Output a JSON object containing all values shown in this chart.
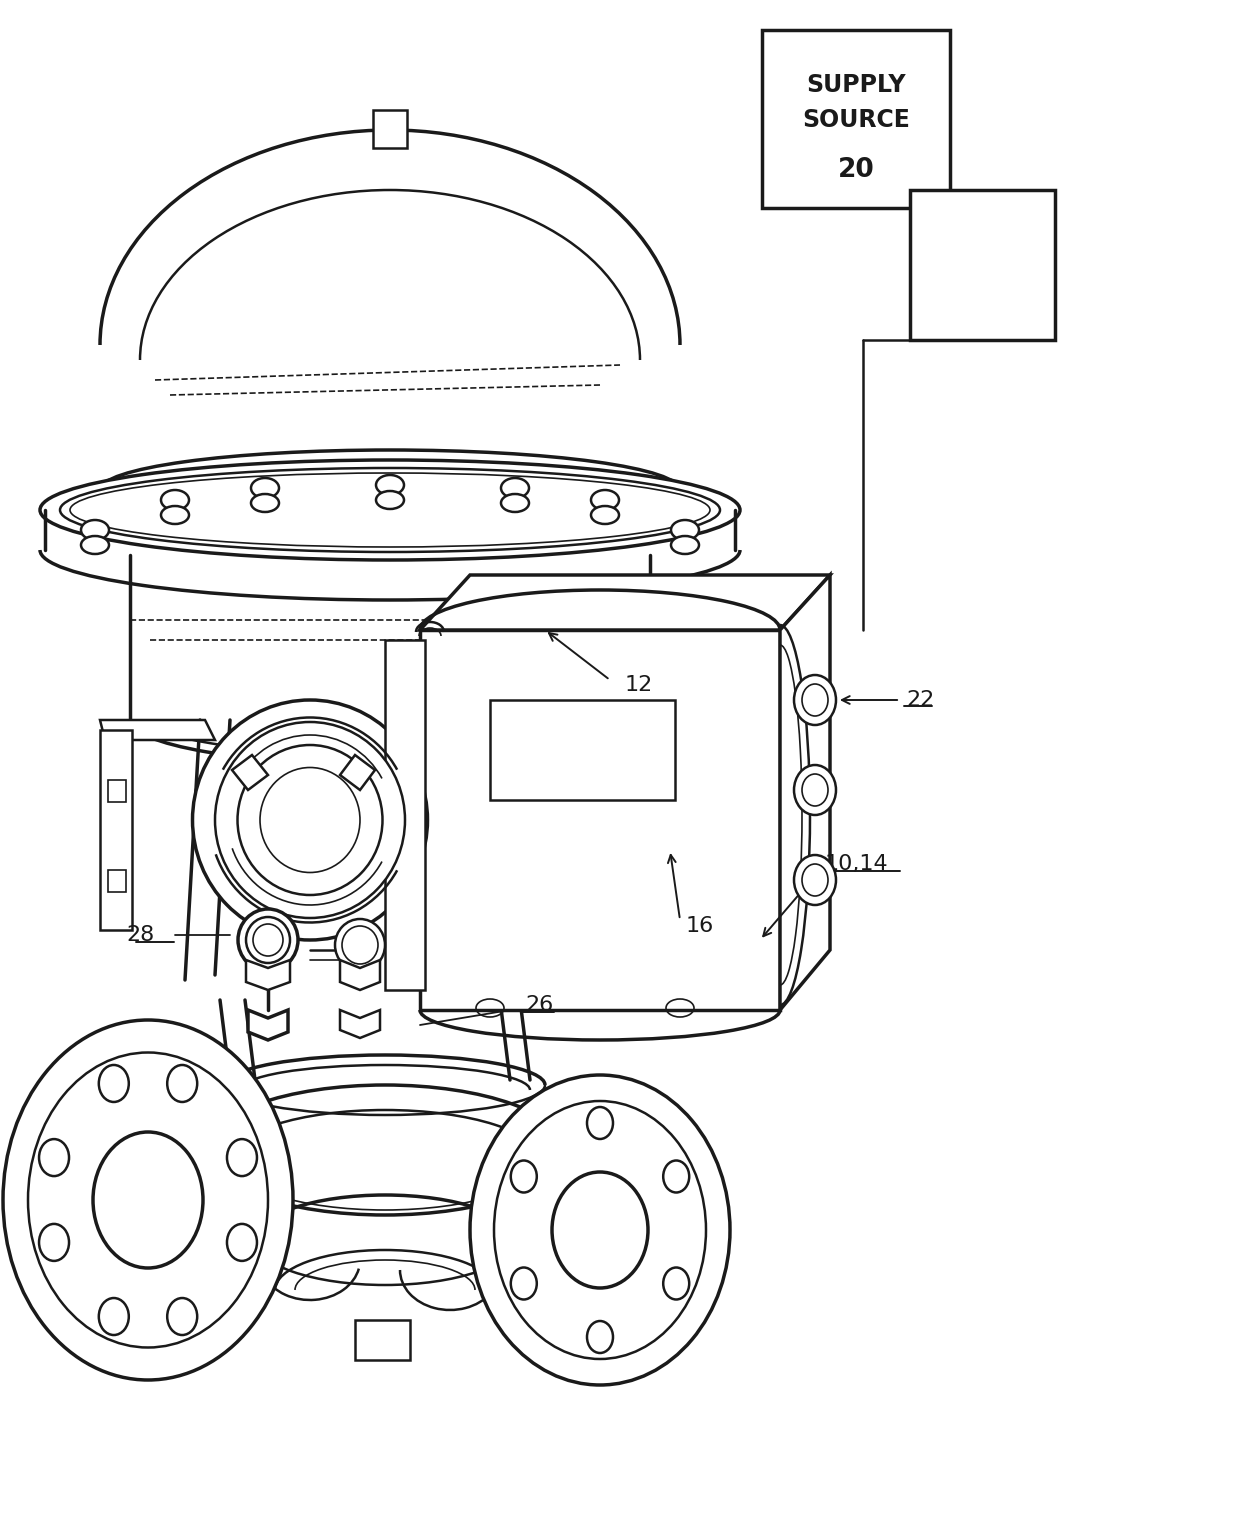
{
  "bg_color": "#ffffff",
  "line_color": "#1a1a1a",
  "lw_thin": 1.2,
  "lw_med": 1.8,
  "lw_thick": 2.5,
  "fig_width": 12.4,
  "fig_height": 15.3,
  "dpi": 100
}
